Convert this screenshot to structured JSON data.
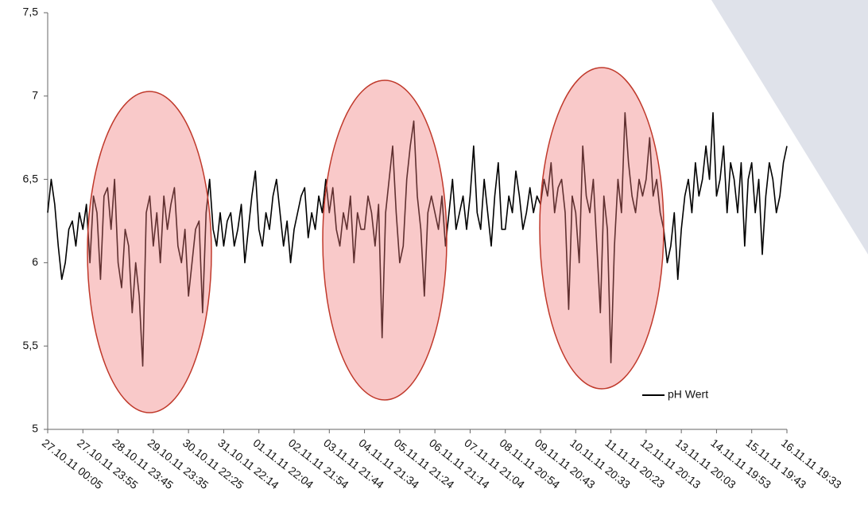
{
  "chart_data": {
    "type": "line",
    "categories": [
      "27.10.11 00:05",
      null,
      null,
      null,
      null,
      null,
      null,
      null,
      null,
      null,
      "27.10.11 23:55",
      null,
      null,
      null,
      null,
      null,
      null,
      null,
      null,
      null,
      "28.10.11 23:45",
      null,
      null,
      null,
      null,
      null,
      null,
      null,
      null,
      null,
      "29.10.11 23:35",
      null,
      null,
      null,
      null,
      null,
      null,
      null,
      null,
      null,
      "30.10.11 22:25",
      null,
      null,
      null,
      null,
      null,
      null,
      null,
      null,
      null,
      "31.10.11 22:14",
      null,
      null,
      null,
      null,
      null,
      null,
      null,
      null,
      null,
      "01.11.11 22:04",
      null,
      null,
      null,
      null,
      null,
      null,
      null,
      null,
      null,
      "02.11.11 21:54",
      null,
      null,
      null,
      null,
      null,
      null,
      null,
      null,
      null,
      "03.11.11 21:44",
      null,
      null,
      null,
      null,
      null,
      null,
      null,
      null,
      null,
      "04.11.11 21:34",
      null,
      null,
      null,
      null,
      null,
      null,
      null,
      null,
      null,
      "05.11.11 21:24",
      null,
      null,
      null,
      null,
      null,
      null,
      null,
      null,
      null,
      "06.11.11 21:14",
      null,
      null,
      null,
      null,
      null,
      null,
      null,
      null,
      null,
      "07.11.11 21:04",
      null,
      null,
      null,
      null,
      null,
      null,
      null,
      null,
      null,
      "08.11.11 20:54",
      null,
      null,
      null,
      null,
      null,
      null,
      null,
      null,
      null,
      "09.11.11 20:43",
      null,
      null,
      null,
      null,
      null,
      null,
      null,
      null,
      null,
      "10.11.11 20:33",
      null,
      null,
      null,
      null,
      null,
      null,
      null,
      null,
      null,
      "11.11.11 20:23",
      null,
      null,
      null,
      null,
      null,
      null,
      null,
      null,
      null,
      "12.11.11 20:13",
      null,
      null,
      null,
      null,
      null,
      null,
      null,
      null,
      null,
      "13.11.11 20:03",
      null,
      null,
      null,
      null,
      null,
      null,
      null,
      null,
      null,
      "14.11.11 19:53",
      null,
      null,
      null,
      null,
      null,
      null,
      null,
      null,
      null,
      "15.11.11 19:43",
      null,
      null,
      null,
      null,
      null,
      null,
      null,
      null,
      null,
      "16.11.11 19:33"
    ],
    "series": [
      {
        "name": "pH Wert",
        "color": "#000000",
        "values": [
          6.3,
          6.5,
          6.35,
          6.1,
          5.9,
          6.0,
          6.2,
          6.25,
          6.1,
          6.3,
          6.2,
          6.35,
          6.0,
          6.4,
          6.3,
          5.9,
          6.4,
          6.45,
          6.2,
          6.5,
          6.0,
          5.85,
          6.2,
          6.1,
          5.7,
          6.0,
          5.8,
          5.38,
          6.3,
          6.4,
          6.1,
          6.3,
          6.0,
          6.4,
          6.2,
          6.35,
          6.45,
          6.1,
          6.0,
          6.2,
          5.8,
          6.0,
          6.2,
          6.25,
          5.7,
          6.3,
          6.5,
          6.2,
          6.1,
          6.3,
          6.1,
          6.25,
          6.3,
          6.1,
          6.2,
          6.35,
          6.0,
          6.2,
          6.4,
          6.55,
          6.2,
          6.1,
          6.3,
          6.2,
          6.4,
          6.5,
          6.3,
          6.1,
          6.25,
          6.0,
          6.2,
          6.3,
          6.4,
          6.45,
          6.15,
          6.3,
          6.2,
          6.4,
          6.3,
          6.5,
          6.3,
          6.45,
          6.2,
          6.1,
          6.3,
          6.2,
          6.4,
          6.0,
          6.3,
          6.2,
          6.2,
          6.4,
          6.3,
          6.1,
          6.35,
          5.55,
          6.3,
          6.5,
          6.7,
          6.3,
          6.0,
          6.1,
          6.5,
          6.7,
          6.85,
          6.4,
          6.2,
          5.8,
          6.3,
          6.4,
          6.3,
          6.2,
          6.4,
          6.1,
          6.3,
          6.5,
          6.2,
          6.3,
          6.4,
          6.2,
          6.4,
          6.7,
          6.3,
          6.2,
          6.5,
          6.3,
          6.1,
          6.4,
          6.6,
          6.2,
          6.2,
          6.4,
          6.3,
          6.55,
          6.4,
          6.2,
          6.3,
          6.45,
          6.3,
          6.4,
          6.35,
          6.5,
          6.4,
          6.6,
          6.3,
          6.45,
          6.5,
          6.3,
          5.72,
          6.4,
          6.3,
          6.0,
          6.7,
          6.4,
          6.3,
          6.5,
          6.1,
          5.7,
          6.4,
          6.2,
          5.4,
          6.1,
          6.5,
          6.3,
          6.9,
          6.6,
          6.4,
          6.3,
          6.5,
          6.4,
          6.5,
          6.75,
          6.4,
          6.5,
          6.3,
          6.2,
          6.0,
          6.1,
          6.3,
          5.9,
          6.2,
          6.4,
          6.5,
          6.3,
          6.6,
          6.4,
          6.5,
          6.7,
          6.5,
          6.9,
          6.4,
          6.5,
          6.7,
          6.3,
          6.6,
          6.5,
          6.3,
          6.6,
          6.1,
          6.5,
          6.6,
          6.3,
          6.5,
          6.05,
          6.4,
          6.6,
          6.5,
          6.3,
          6.4,
          6.6,
          6.7
        ]
      }
    ],
    "ylim": [
      5,
      7.5
    ],
    "yticks": [
      5,
      {
        "value": 5.5,
        "label": "5,5"
      },
      6,
      {
        "value": 6.5,
        "label": "6,5"
      },
      7,
      {
        "value": 7.5,
        "label": "7,5"
      }
    ],
    "legend": "lower right"
  }
}
